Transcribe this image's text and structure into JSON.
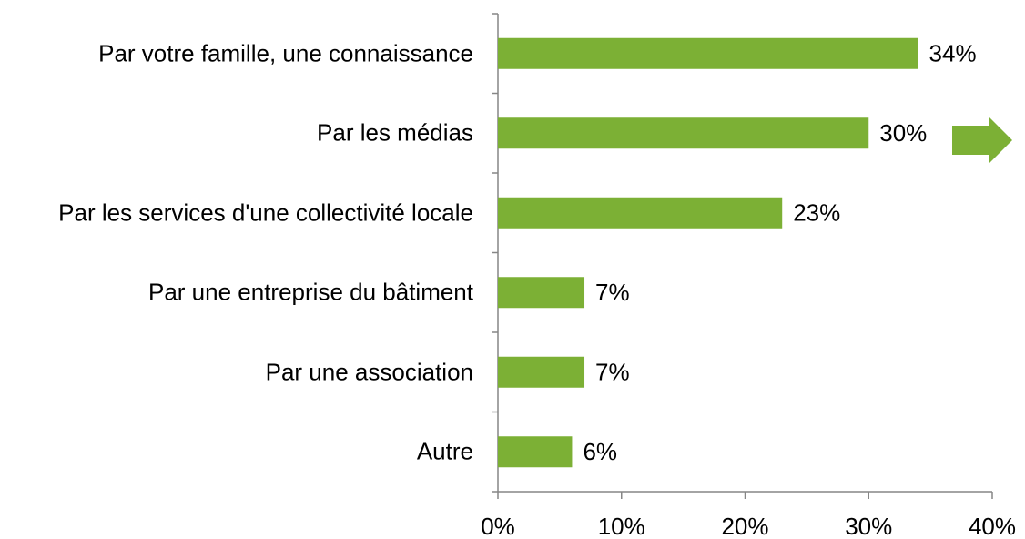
{
  "chart_data": {
    "type": "bar",
    "orientation": "horizontal",
    "categories": [
      "Par votre famille, une connaissance",
      "Par les médias",
      "Par les services d'une collectivité locale",
      "Par une entreprise du bâtiment",
      "Par une association",
      "Autre"
    ],
    "values": [
      34,
      30,
      23,
      7,
      7,
      6
    ],
    "value_labels": [
      "34%",
      "30%",
      "23%",
      "7%",
      "7%",
      "6%"
    ],
    "color": "#7cb035",
    "xlim": [
      0,
      40
    ],
    "xticks": [
      {
        "value": 0,
        "label": "0%"
      },
      {
        "value": 10,
        "label": "10%"
      },
      {
        "value": 20,
        "label": "20%"
      },
      {
        "value": 30,
        "label": "30%"
      },
      {
        "value": 40,
        "label": "40%"
      }
    ],
    "grid": false
  }
}
